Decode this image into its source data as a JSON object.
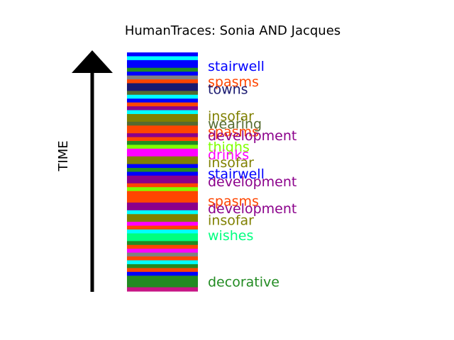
{
  "chart_data": {
    "type": "bar",
    "title": "HumanTraces: Sonia AND Jacques",
    "ylabel": "TIME",
    "stripe_colors": [
      "#0000ff",
      "#00ffff",
      "#0000ff",
      "#0000ff",
      "#228b22",
      "#0000ff",
      "#808080",
      "#ff4500",
      "#191970",
      "#191970",
      "#556b2f",
      "#00ffff",
      "#0000ff",
      "#ff4500",
      "#8b008b",
      "#00ffff",
      "#808000",
      "#808000",
      "#556b2f",
      "#ff4500",
      "#ff4500",
      "#8b008b",
      "#ff4500",
      "#228b22",
      "#7fff00",
      "#ff00ff",
      "#ff00ff",
      "#808000",
      "#808000",
      "#0000ff",
      "#228b22",
      "#0000ff",
      "#8b008b",
      "#8b008b",
      "#ff4500",
      "#7fff00",
      "#ff4500",
      "#ff4500",
      "#ff4500",
      "#8b008b",
      "#8b008b",
      "#00ffff",
      "#808000",
      "#808000",
      "#ff00ff",
      "#ff4500",
      "#00ffff",
      "#00ff7f",
      "#00ff7f",
      "#228b22",
      "#ff4500",
      "#ff00ff",
      "#808080",
      "#ff4500",
      "#00ffff",
      "#228b22",
      "#ff4500",
      "#0000ff",
      "#228b22",
      "#228b22",
      "#228b22",
      "#c71585"
    ],
    "labels": [
      {
        "text": "stairwell",
        "color": "#0000ff",
        "stripe": 3
      },
      {
        "text": "spasms",
        "color": "#ff4500",
        "stripe": 7
      },
      {
        "text": "towns",
        "color": "#191970",
        "stripe": 9
      },
      {
        "text": "insofar",
        "color": "#808000",
        "stripe": 16
      },
      {
        "text": "wearing",
        "color": "#556b2f",
        "stripe": 18
      },
      {
        "text": "spasms",
        "color": "#ff4500",
        "stripe": 20
      },
      {
        "text": "development",
        "color": "#8b008b",
        "stripe": 21
      },
      {
        "text": "thighs",
        "color": "#7fff00",
        "stripe": 24
      },
      {
        "text": "drinks",
        "color": "#ff00ff",
        "stripe": 26
      },
      {
        "text": "insofar",
        "color": "#808000",
        "stripe": 28
      },
      {
        "text": "stairwell",
        "color": "#0000ff",
        "stripe": 31
      },
      {
        "text": "development",
        "color": "#8b008b",
        "stripe": 33
      },
      {
        "text": "spasms",
        "color": "#ff4500",
        "stripe": 38
      },
      {
        "text": "development",
        "color": "#8b008b",
        "stripe": 40
      },
      {
        "text": "insofar",
        "color": "#808000",
        "stripe": 43
      },
      {
        "text": "wishes",
        "color": "#00ff7f",
        "stripe": 47
      },
      {
        "text": "decorative",
        "color": "#228b22",
        "stripe": 59
      }
    ]
  }
}
